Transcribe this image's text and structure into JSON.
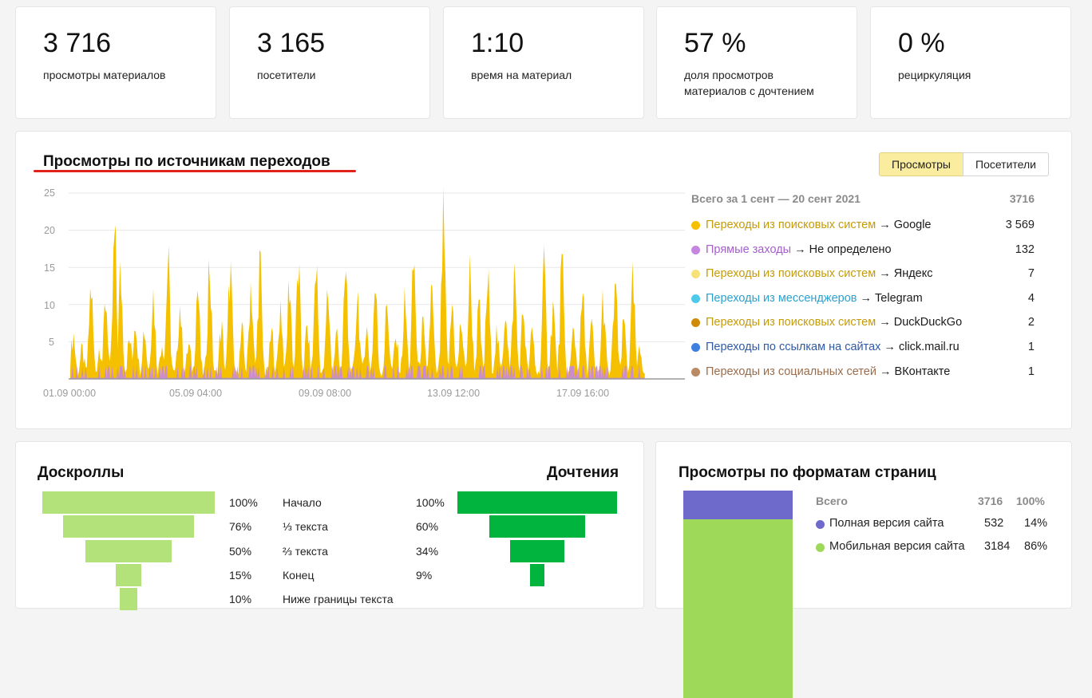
{
  "kpis": [
    {
      "value": "3 716",
      "label": "просмотры материалов"
    },
    {
      "value": "3 165",
      "label": "посетители"
    },
    {
      "value": "1:10",
      "label": "время на материал"
    },
    {
      "value": "57 %",
      "label": "доля просмотров материалов с дочтением"
    },
    {
      "value": "0 %",
      "label": "рециркуляция"
    }
  ],
  "sources": {
    "title": "Просмотры по источникам переходов",
    "toggle": {
      "views": "Просмотры",
      "visitors": "Посетители"
    },
    "total_label": "Всего за 1 сент — 20 сент 2021",
    "total_value": "3716",
    "rows": [
      {
        "source": "Переходы из поисковых систем",
        "target": "Google",
        "value": "3 569",
        "color": "#f5c000",
        "label_color": "#c59b08"
      },
      {
        "source": "Прямые заходы",
        "target": "Не определено",
        "value": "132",
        "color": "#c586e0",
        "label_color": "#a45fcc"
      },
      {
        "source": "Переходы из поисковых систем",
        "target": "Яндекс",
        "value": "7",
        "color": "#f7e27a",
        "label_color": "#c59b08"
      },
      {
        "source": "Переходы из мессенджеров",
        "target": "Telegram",
        "value": "4",
        "color": "#4fc9ea",
        "label_color": "#2aa1cf"
      },
      {
        "source": "Переходы из поисковых систем",
        "target": "DuckDuckGo",
        "value": "2",
        "color": "#d08a0a",
        "label_color": "#c59b08"
      },
      {
        "source": "Переходы по ссылкам на сайтах",
        "target": "click.mail.ru",
        "value": "1",
        "color": "#3f7fe0",
        "label_color": "#2f5aa8"
      },
      {
        "source": "Переходы из социальных сетей",
        "target": "ВКонтакте",
        "value": "1",
        "color": "#b98a66",
        "label_color": "#9a6c4c"
      }
    ]
  },
  "chart_data": {
    "type": "area",
    "x_ticks": [
      "01.09 00:00",
      "05.09 04:00",
      "09.09 08:00",
      "13.09 12:00",
      "17.09 16:00"
    ],
    "y_ticks": [
      5,
      10,
      15,
      20,
      25
    ],
    "ylim": [
      0,
      25
    ],
    "grid": true,
    "series_colors": {
      "search": "#f5c000",
      "direct": "#c586e0"
    },
    "peaks": [
      {
        "x": 0.005,
        "y": 7
      },
      {
        "x": 0.02,
        "y": 4
      },
      {
        "x": 0.035,
        "y": 15
      },
      {
        "x": 0.05,
        "y": 5
      },
      {
        "x": 0.06,
        "y": 13
      },
      {
        "x": 0.075,
        "y": 23
      },
      {
        "x": 0.085,
        "y": 17
      },
      {
        "x": 0.1,
        "y": 6
      },
      {
        "x": 0.11,
        "y": 10
      },
      {
        "x": 0.125,
        "y": 8
      },
      {
        "x": 0.14,
        "y": 14
      },
      {
        "x": 0.155,
        "y": 6
      },
      {
        "x": 0.165,
        "y": 19
      },
      {
        "x": 0.185,
        "y": 12
      },
      {
        "x": 0.2,
        "y": 5
      },
      {
        "x": 0.215,
        "y": 15
      },
      {
        "x": 0.235,
        "y": 19
      },
      {
        "x": 0.255,
        "y": 8
      },
      {
        "x": 0.27,
        "y": 18
      },
      {
        "x": 0.29,
        "y": 7
      },
      {
        "x": 0.305,
        "y": 16
      },
      {
        "x": 0.32,
        "y": 19
      },
      {
        "x": 0.34,
        "y": 7
      },
      {
        "x": 0.355,
        "y": 12
      },
      {
        "x": 0.37,
        "y": 16
      },
      {
        "x": 0.385,
        "y": 18
      },
      {
        "x": 0.4,
        "y": 8
      },
      {
        "x": 0.415,
        "y": 19
      },
      {
        "x": 0.435,
        "y": 14
      },
      {
        "x": 0.45,
        "y": 7
      },
      {
        "x": 0.465,
        "y": 17
      },
      {
        "x": 0.485,
        "y": 14
      },
      {
        "x": 0.5,
        "y": 8
      },
      {
        "x": 0.515,
        "y": 15
      },
      {
        "x": 0.535,
        "y": 12
      },
      {
        "x": 0.55,
        "y": 6
      },
      {
        "x": 0.565,
        "y": 12
      },
      {
        "x": 0.58,
        "y": 19
      },
      {
        "x": 0.595,
        "y": 8
      },
      {
        "x": 0.61,
        "y": 14
      },
      {
        "x": 0.63,
        "y": 25
      },
      {
        "x": 0.645,
        "y": 12
      },
      {
        "x": 0.66,
        "y": 9
      },
      {
        "x": 0.675,
        "y": 17
      },
      {
        "x": 0.69,
        "y": 11
      },
      {
        "x": 0.705,
        "y": 16
      },
      {
        "x": 0.72,
        "y": 7
      },
      {
        "x": 0.735,
        "y": 12
      },
      {
        "x": 0.75,
        "y": 17
      },
      {
        "x": 0.765,
        "y": 11
      },
      {
        "x": 0.78,
        "y": 7
      },
      {
        "x": 0.8,
        "y": 17
      },
      {
        "x": 0.815,
        "y": 12
      },
      {
        "x": 0.83,
        "y": 18
      },
      {
        "x": 0.85,
        "y": 8
      },
      {
        "x": 0.865,
        "y": 13
      },
      {
        "x": 0.88,
        "y": 8
      },
      {
        "x": 0.9,
        "y": 13
      },
      {
        "x": 0.92,
        "y": 16
      },
      {
        "x": 0.935,
        "y": 9
      },
      {
        "x": 0.95,
        "y": 15
      },
      {
        "x": 0.962,
        "y": 4
      },
      {
        "x": 0.97,
        "y": 1
      }
    ]
  },
  "scroll": {
    "title_left": "Доскроллы",
    "title_right": "Дочтения",
    "rows": [
      {
        "scroll": 100,
        "scroll_label": "100%",
        "stage": "Начало",
        "read": 100,
        "read_label": "100%"
      },
      {
        "scroll": 76,
        "scroll_label": "76%",
        "stage": "⅓ текста",
        "read": 60,
        "read_label": "60%"
      },
      {
        "scroll": 50,
        "scroll_label": "50%",
        "stage": "⅔ текста",
        "read": 34,
        "read_label": "34%"
      },
      {
        "scroll": 15,
        "scroll_label": "15%",
        "stage": "Конец",
        "read": 9,
        "read_label": "9%"
      },
      {
        "scroll": 10,
        "scroll_label": "10%",
        "stage": "Ниже границы текста",
        "read": null,
        "read_label": ""
      }
    ],
    "colors": {
      "scroll": "#b3e27a",
      "read": "#00b43e"
    }
  },
  "formats": {
    "title": "Просмотры по форматам страниц",
    "header": {
      "label": "Всего",
      "count": "3716",
      "pct": "100%"
    },
    "rows": [
      {
        "label": "Полная версия сайта",
        "count": "532",
        "pct": "14%",
        "share": 14,
        "color": "#6e6acb"
      },
      {
        "label": "Мобильная версия сайта",
        "count": "3184",
        "pct": "86%",
        "share": 86,
        "color": "#9ed95a"
      }
    ]
  }
}
